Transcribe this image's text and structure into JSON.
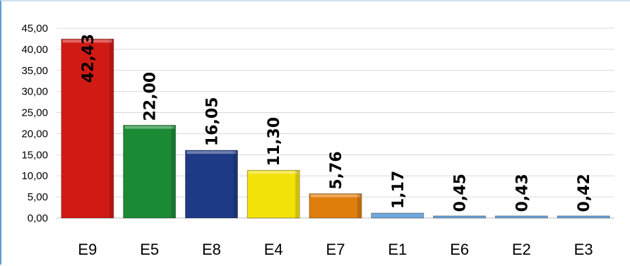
{
  "chart_data": {
    "type": "bar",
    "categories": [
      "E9",
      "E5",
      "E8",
      "E4",
      "E7",
      "E1",
      "E6",
      "E2",
      "E3"
    ],
    "values": [
      42.43,
      22.0,
      16.05,
      11.3,
      5.76,
      1.17,
      0.45,
      0.43,
      0.42
    ],
    "value_labels": [
      "42,43",
      "22,00",
      "16,05",
      "11,30",
      "5,76",
      "1,17",
      "0,45",
      "0,43",
      "0,42"
    ],
    "bar_colors": [
      "#d21a14",
      "#1a8a35",
      "#1f3a85",
      "#f2e20a",
      "#e07e0c",
      "#6fa8dc",
      "#6fa8dc",
      "#6fa8dc",
      "#6fa8dc"
    ],
    "yticks": [
      "0,00",
      "5,00",
      "10,00",
      "15,00",
      "20,00",
      "25,00",
      "30,00",
      "35,00",
      "40,00",
      "45,00"
    ],
    "ylim": [
      0,
      45
    ],
    "grid": true,
    "title": "",
    "xlabel": "",
    "ylabel": ""
  }
}
